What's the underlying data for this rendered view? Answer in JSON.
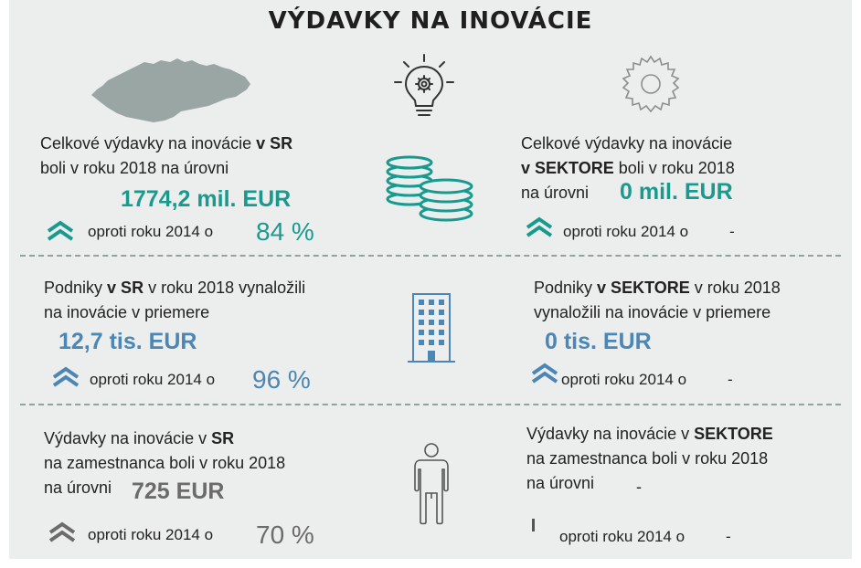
{
  "title": "VÝDAVKY NA INOVÁCIE",
  "colors": {
    "teal": "#1a9a8e",
    "blue": "#4b86b4",
    "grey": "#6b6b6b",
    "background": "#ebeeed"
  },
  "icons": [
    "slovakia-map-icon",
    "lightbulb-gear-icon",
    "gear-icon",
    "coins-icon",
    "building-icon",
    "person-icon"
  ],
  "rows": [
    {
      "left": {
        "line1_prefix": "Celkové výdavky na inovácie ",
        "line1_bold": "v SR",
        "line2": "boli v roku 2018 na úrovni",
        "value": "1774,2 mil. EUR",
        "compare_label": "oproti roku 2014 o",
        "change": "84 %"
      },
      "right": {
        "line1": "Celkové výdavky na inovácie",
        "line2_bold": "v  SEKTORE",
        "line2_rest": " boli v roku 2018",
        "line3": "na úrovni",
        "value": "0 mil. EUR",
        "compare_label": "oproti roku 2014 o",
        "change": "-"
      }
    },
    {
      "left": {
        "line1_prefix": "Podniky ",
        "line1_bold": "v SR",
        "line1_rest": " v roku 2018 vynaložili",
        "line2": "na inovácie v priemere",
        "value": "12,7 tis. EUR",
        "compare_label": "oproti roku 2014 o",
        "change": "96 %"
      },
      "right": {
        "line1_prefix": "Podniky ",
        "line1_bold": "v SEKTORE",
        "line1_rest": " v roku 2018",
        "line2": "vynaložili  na inovácie  v priemere",
        "value": "0 tis. EUR",
        "compare_label": "oproti roku 2014 o",
        "change": "-"
      }
    },
    {
      "left": {
        "line1_prefix": "Výdavky na inovácie v ",
        "line1_bold": "SR",
        "line2": "na zamestnanca boli v roku 2018",
        "line3": "na úrovni",
        "value": "725 EUR",
        "compare_label": "oproti roku 2014 o",
        "change": "70 %"
      },
      "right": {
        "line1_prefix": "Výdavky na inovácie v ",
        "line1_bold": "SEKTORE",
        "line2": "na zamestnanca boli v roku 2018",
        "line3": "na úrovni",
        "value": "-",
        "compare_label": "oproti roku 2014 o",
        "change": "-"
      }
    }
  ]
}
